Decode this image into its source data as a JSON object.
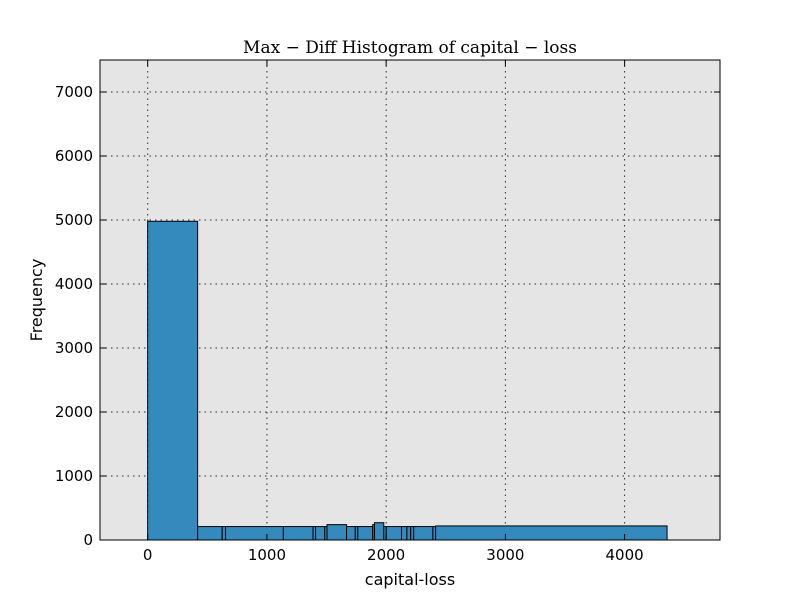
{
  "chart_data": {
    "type": "bar",
    "title": "Max − Diff Histogram of capital − loss",
    "xlabel": "capital-loss",
    "ylabel": "Frequency",
    "xlim": [
      -400,
      4800
    ],
    "ylim": [
      0,
      7500
    ],
    "xticks": [
      0,
      1000,
      2000,
      3000,
      4000
    ],
    "yticks": [
      0,
      1000,
      2000,
      3000,
      4000,
      5000,
      6000,
      7000
    ],
    "grid": true,
    "colors": {
      "bar": "#348ABD",
      "plot_background": "#E5E5E5",
      "edge": "#000000"
    },
    "bins": [
      {
        "start": 0,
        "end": 419,
        "value": 4980
      },
      {
        "start": 419,
        "end": 625,
        "value": 210
      },
      {
        "start": 625,
        "end": 653,
        "value": 210
      },
      {
        "start": 653,
        "end": 1138,
        "value": 210
      },
      {
        "start": 1138,
        "end": 1387,
        "value": 210
      },
      {
        "start": 1387,
        "end": 1408,
        "value": 210
      },
      {
        "start": 1408,
        "end": 1485,
        "value": 210
      },
      {
        "start": 1485,
        "end": 1504,
        "value": 210
      },
      {
        "start": 1504,
        "end": 1668,
        "value": 240
      },
      {
        "start": 1668,
        "end": 1741,
        "value": 210
      },
      {
        "start": 1741,
        "end": 1762,
        "value": 210
      },
      {
        "start": 1762,
        "end": 1887,
        "value": 210
      },
      {
        "start": 1887,
        "end": 1902,
        "value": 240
      },
      {
        "start": 1902,
        "end": 1980,
        "value": 270
      },
      {
        "start": 1980,
        "end": 2001,
        "value": 210
      },
      {
        "start": 2001,
        "end": 2129,
        "value": 210
      },
      {
        "start": 2129,
        "end": 2174,
        "value": 210
      },
      {
        "start": 2174,
        "end": 2206,
        "value": 210
      },
      {
        "start": 2206,
        "end": 2231,
        "value": 210
      },
      {
        "start": 2231,
        "end": 2392,
        "value": 210
      },
      {
        "start": 2392,
        "end": 2415,
        "value": 210
      },
      {
        "start": 2415,
        "end": 4356,
        "value": 220
      }
    ]
  }
}
